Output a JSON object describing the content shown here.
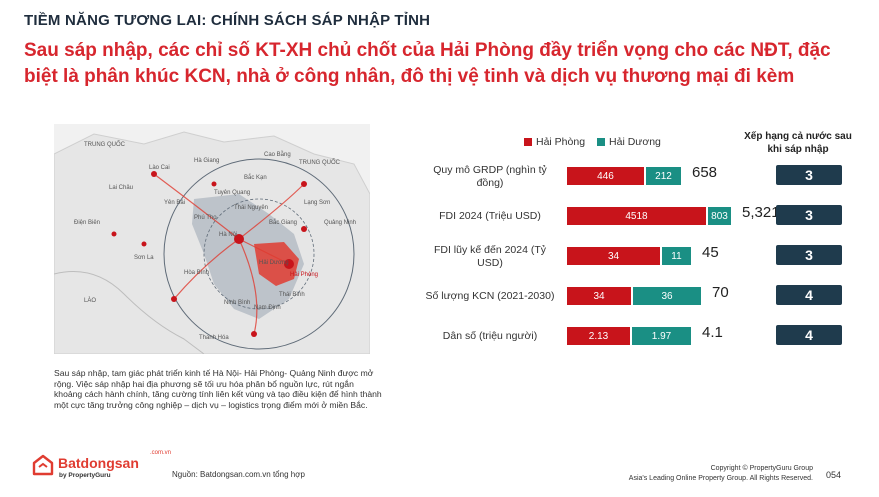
{
  "header": {
    "kicker": "TIỀM NĂNG TƯƠNG LAI: CHÍNH SÁCH SÁP NHẬP TỈNH",
    "headline": "Sau sáp nhập, các chỉ số KT-XH chủ chốt của Hải Phòng đầy triển vọng cho các NĐT, đặc biệt là phân khúc KCN, nhà ở công nhân, đô thị vệ tinh và dịch vụ thương mại đi kèm"
  },
  "map": {
    "labels": [
      "TRUNG QUỐC",
      "TRUNG QUỐC",
      "LÀO",
      "Lai Châu",
      "Điện Biên",
      "Hà Giang",
      "Cao Bằng",
      "Lạng Sơn",
      "Quảng Ninh",
      "Hà Nội",
      "Hải Phòng",
      "Thái Bình",
      "Nam Định",
      "Ninh Bình",
      "Thanh Hóa",
      "Sơn La",
      "Hòa Bình",
      "Phú Thọ",
      "Yên Bái",
      "Lào Cai",
      "Tuyên Quang",
      "Bắc Kạn",
      "Thái Nguyên",
      "Bắc Giang",
      "Hải Dương"
    ],
    "colors": {
      "land": "#e6e6e6",
      "region": "#9aa6b2",
      "highlight": "#e03c31",
      "ring": "#5f6b78"
    }
  },
  "caption": "Sau sáp nhập, tam giác phát triển kinh tế Hà Nội- Hải Phòng- Quảng Ninh được mở rộng. Việc sáp nhập hai địa phương sẽ tối ưu hóa phân bổ nguồn lực, rút ngắn khoảng cách hành chính, tăng cường tính liên kết vùng và tạo điều kiện để hình thành một cực tăng trưởng công nghiệp – dịch vụ – logistics trọng điểm mới ở miền Bắc.",
  "footer": {
    "brand": "Batdongsan",
    "brand_domain": ".com.vn",
    "brand_sub": "by PropertyGuru",
    "source": "Nguồn: Batdongsan.com.vn tổng hợp",
    "copyright_1": "Copyright © PropertyGuru Group",
    "copyright_2": "Asia's Leading Online Property Group. All Rights Reserved.",
    "page": "054"
  },
  "chart_data": {
    "type": "bar",
    "orientation": "horizontal-stacked",
    "legend": [
      "Hải Phòng",
      "Hải Dương"
    ],
    "rank_header": "Xếp hạng cả nước sau khi sáp nhập",
    "colors": {
      "Hải Phòng": "#c8141b",
      "Hải Dương": "#1a8f84",
      "rank": "#1f3b4d"
    },
    "categories": [
      "Quy mô GRDP (nghìn tỷ đồng)",
      "FDI 2024 (Triệu USD)",
      "FDI lũy kế đến 2024 (Tỷ USD)",
      "Số lượng KCN (2021-2030)",
      "Dân số (triệu người)"
    ],
    "rows": [
      {
        "hp": 446,
        "hp_label": "446",
        "hd": 212,
        "hd_label": "212",
        "total": "658",
        "rank": "3"
      },
      {
        "hp": 4518,
        "hp_label": "4518",
        "hd": 803,
        "hd_label": "803",
        "total": "5,321",
        "rank": "3"
      },
      {
        "hp": 34,
        "hp_label": "34",
        "hd": 11,
        "hd_label": "11",
        "total": "45",
        "rank": "3"
      },
      {
        "hp": 34,
        "hp_label": "34",
        "hd": 36,
        "hd_label": "36",
        "total": "70",
        "rank": "4"
      },
      {
        "hp": 2.13,
        "hp_label": "2.13",
        "hd": 1.97,
        "hd_label": "1.97",
        "total": "4.1",
        "rank": "4"
      }
    ]
  }
}
